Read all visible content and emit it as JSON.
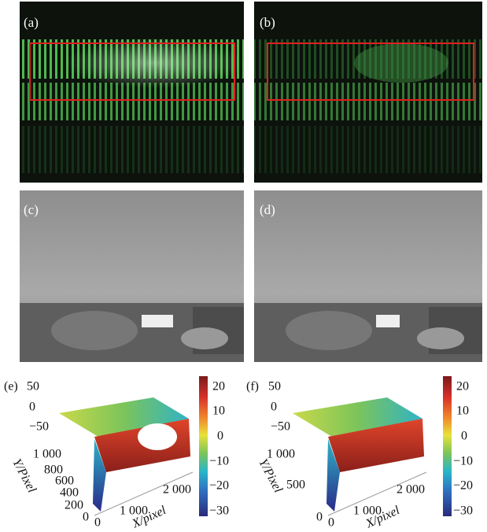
{
  "panels": [
    {
      "label": "(a)"
    },
    {
      "label": "(b)"
    },
    {
      "label": "(c)"
    },
    {
      "label": "(d)"
    },
    {
      "label": "(e)",
      "z_ticks": [
        "50",
        "0",
        "−50"
      ],
      "y_ticks": [
        "1 000",
        "800",
        "600",
        "400",
        "200",
        "0"
      ],
      "x_ticks": [
        "0",
        "1 000",
        "2 000"
      ],
      "y_label": "Y/Pixel",
      "x_label": "X/pixel",
      "colorbar_ticks": [
        "20",
        "10",
        "0",
        "−10",
        "−20",
        "−30"
      ]
    },
    {
      "label": "(f)",
      "z_ticks": [
        "50",
        "0",
        "−50"
      ],
      "y_ticks": [
        "1 000",
        "500",
        "0"
      ],
      "x_ticks": [
        "0",
        "1 000",
        "2 000"
      ],
      "y_label": "Y/Pixel",
      "x_label": "X/pixel",
      "colorbar_ticks": [
        "20",
        "10",
        "0",
        "−10",
        "−20",
        "−30"
      ]
    }
  ]
}
